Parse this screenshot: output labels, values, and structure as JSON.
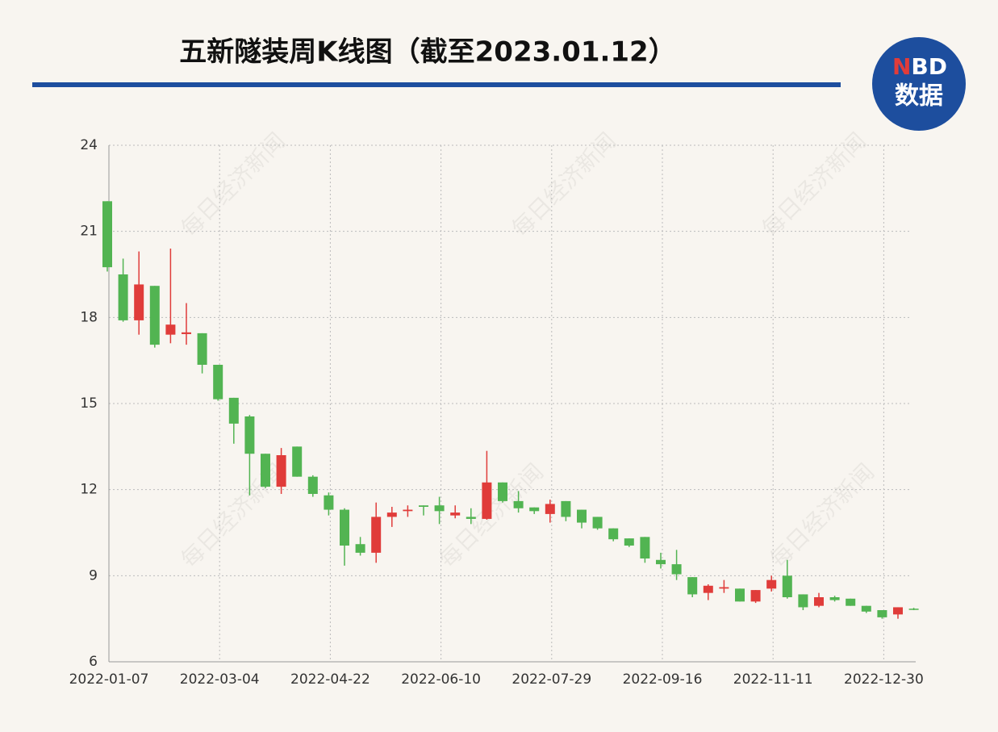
{
  "chart_data": {
    "type": "candlestick",
    "title": "五新隧装周K线图（截至2023.01.12）",
    "logo": {
      "n": "N",
      "bd": "BD",
      "cn": "数据"
    },
    "watermark": "每日经济新闻",
    "categories": [
      "2022-01-07",
      null,
      null,
      null,
      null,
      null,
      null,
      "2022-03-04",
      null,
      null,
      null,
      null,
      null,
      null,
      "2022-04-22",
      null,
      null,
      null,
      null,
      null,
      null,
      "2022-06-10",
      null,
      null,
      null,
      null,
      null,
      null,
      "2022-07-29",
      null,
      null,
      null,
      null,
      null,
      null,
      "2022-09-16",
      null,
      null,
      null,
      null,
      null,
      null,
      "2022-11-11",
      null,
      null,
      null,
      null,
      null,
      null,
      "2022-12-30",
      null,
      null
    ],
    "open": [
      22.05,
      19.5,
      17.9,
      19.1,
      17.4,
      17.42,
      17.45,
      16.35,
      15.2,
      14.55,
      13.25,
      12.1,
      13.5,
      12.45,
      11.8,
      11.3,
      10.1,
      9.8,
      11.05,
      11.25,
      11.45,
      11.45,
      11.1,
      11.05,
      10.98,
      12.25,
      11.6,
      11.38,
      11.15,
      11.6,
      11.3,
      11.05,
      10.65,
      10.3,
      10.35,
      9.55,
      9.4,
      8.95,
      8.4,
      8.55,
      8.55,
      8.1,
      8.55,
      9.0,
      8.35,
      7.95,
      8.25,
      8.2,
      7.95,
      7.8,
      7.65,
      7.85
    ],
    "high": [
      22.05,
      20.05,
      20.3,
      19.1,
      20.4,
      18.5,
      17.45,
      16.35,
      15.2,
      14.6,
      13.25,
      13.45,
      13.5,
      12.5,
      11.9,
      11.35,
      10.35,
      11.55,
      11.4,
      11.45,
      11.45,
      11.75,
      11.45,
      11.35,
      13.35,
      12.25,
      11.95,
      11.38,
      11.65,
      11.6,
      11.3,
      11.05,
      10.65,
      10.3,
      10.35,
      9.8,
      9.9,
      8.95,
      8.7,
      8.85,
      8.55,
      8.5,
      9.0,
      9.55,
      8.35,
      8.4,
      8.3,
      8.2,
      7.95,
      7.8,
      7.9,
      7.88
    ],
    "low": [
      19.6,
      17.85,
      17.4,
      16.95,
      17.1,
      17.05,
      16.05,
      15.1,
      13.6,
      11.8,
      12.05,
      11.85,
      12.45,
      11.75,
      11.1,
      9.35,
      9.7,
      9.45,
      10.7,
      11.05,
      11.1,
      10.8,
      11.0,
      10.8,
      10.95,
      11.55,
      11.2,
      11.15,
      10.85,
      10.9,
      10.65,
      10.6,
      10.2,
      10.0,
      9.45,
      9.25,
      8.85,
      8.25,
      8.15,
      8.4,
      8.1,
      8.05,
      8.45,
      8.2,
      7.8,
      7.9,
      8.1,
      7.95,
      7.7,
      7.5,
      7.5,
      7.8
    ],
    "close": [
      19.75,
      17.9,
      19.15,
      17.05,
      17.75,
      17.48,
      16.35,
      15.15,
      14.3,
      13.25,
      12.1,
      13.2,
      12.45,
      11.85,
      11.3,
      10.05,
      9.8,
      11.05,
      11.2,
      11.3,
      11.4,
      11.25,
      11.2,
      10.98,
      12.25,
      11.6,
      11.35,
      11.25,
      11.5,
      11.05,
      10.85,
      10.65,
      10.27,
      10.05,
      9.6,
      9.4,
      9.05,
      8.35,
      8.65,
      8.6,
      8.1,
      8.5,
      8.85,
      8.25,
      7.9,
      8.25,
      8.15,
      7.95,
      7.75,
      7.55,
      7.9,
      7.82
    ],
    "up_color": "#e03c3a",
    "down_color": "#52b452",
    "ylim": [
      6,
      24
    ],
    "yticks": [
      6,
      9,
      12,
      15,
      18,
      21,
      24
    ],
    "grid": true
  }
}
